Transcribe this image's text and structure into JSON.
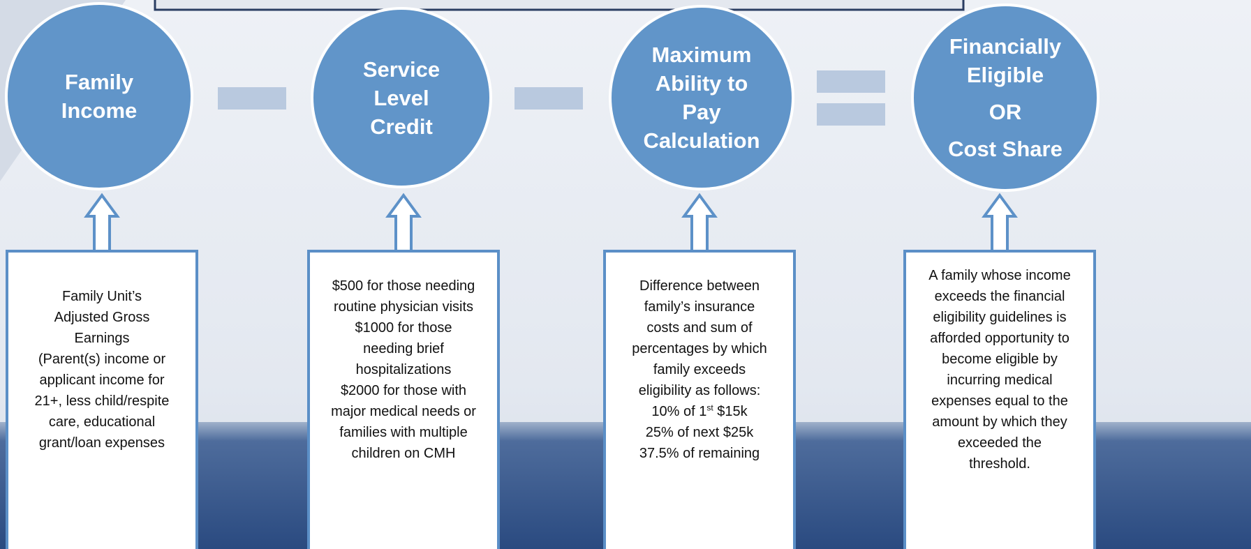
{
  "circles": [
    {
      "lines": [
        "Family",
        "Income"
      ]
    },
    {
      "lines": [
        "Service",
        "Level",
        "Credit"
      ]
    },
    {
      "lines": [
        "Maximum",
        "Ability to",
        "Pay",
        "Calculation"
      ]
    },
    {
      "lines": [
        "Financially",
        "Eligible",
        "OR",
        "Cost Share"
      ]
    }
  ],
  "boxes": [
    {
      "lines": [
        "Family Unit’s",
        "Adjusted Gross",
        "Earnings",
        "(Parent(s) income or",
        "applicant income for",
        "21+, less child/respite",
        "care, educational",
        "grant/loan expenses"
      ]
    },
    {
      "lines": [
        "$500 for those needing",
        "routine physician visits",
        "$1000 for those",
        "needing brief",
        "hospitalizations",
        "$2000 for those with",
        "major medical needs or",
        "families with multiple",
        "children on CMH"
      ]
    },
    {
      "lines": [
        "Difference between",
        "family’s insurance",
        "costs and sum of",
        "percentages by which",
        "family exceeds",
        "eligibility as follows:",
        {
          "pre": "10% of 1",
          "sup": "st",
          "post": " $15k"
        },
        "25% of next $25k",
        "37.5% of remaining"
      ]
    },
    {
      "lines": [
        "A family whose income",
        "exceeds the financial",
        "eligibility guidelines is",
        "afforded opportunity to",
        "become eligible by",
        "incurring medical",
        "expenses equal to the",
        "amount by which they",
        "exceeded the",
        "threshold."
      ]
    }
  ]
}
